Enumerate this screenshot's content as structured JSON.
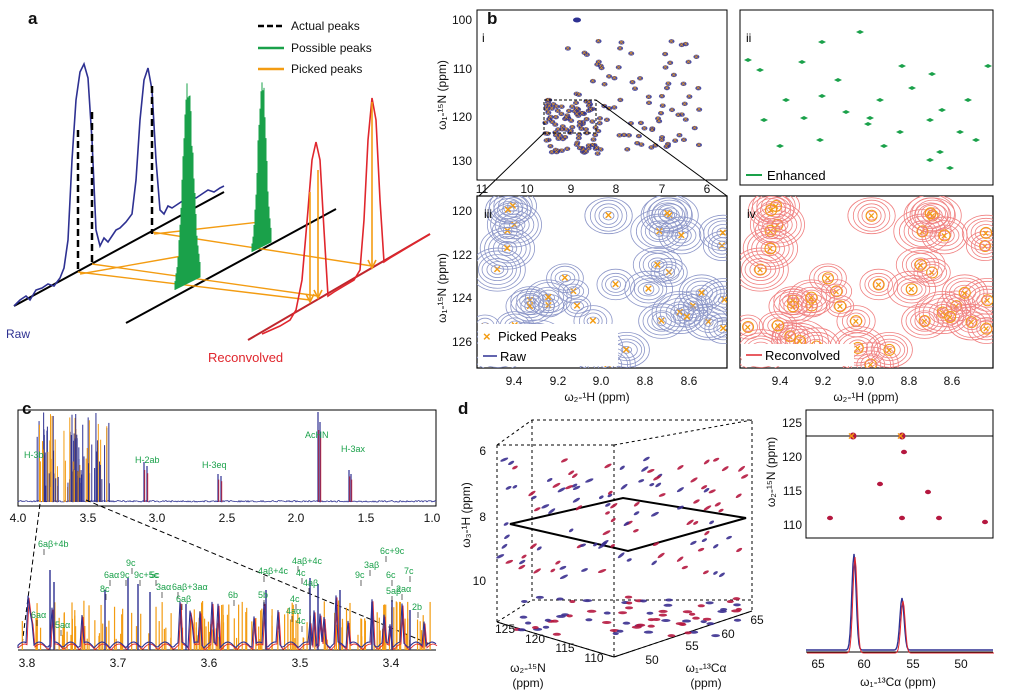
{
  "panel_labels": {
    "a": "a",
    "b": "b",
    "c": "c",
    "d": "d"
  },
  "panel_a": {
    "legend": [
      {
        "label": "Actual peaks",
        "color": "#000000",
        "style": "dashed"
      },
      {
        "label": "Possible peaks",
        "color": "#1aa14a",
        "style": "solid"
      },
      {
        "label": "Picked peaks",
        "color": "#f39c12",
        "style": "solid"
      }
    ],
    "raw_label": "Raw",
    "reconvolved_label": "Reconvolved"
  },
  "panel_b": {
    "sub_i": "i",
    "sub_ii": "ii",
    "sub_iii": "iii",
    "sub_iv": "iv",
    "i_yticks": [
      "100",
      "110",
      "120",
      "130"
    ],
    "i_xticks": [
      "11",
      "10",
      "9",
      "8",
      "7",
      "6"
    ],
    "i_ylabel": "ω₁-¹⁵N (ppm)",
    "ii_legend": "Enhanced",
    "iii_yticks": [
      "120",
      "122",
      "124",
      "126"
    ],
    "iii_xticks": [
      "9.4",
      "9.2",
      "9.0",
      "8.8",
      "8.6"
    ],
    "iii_ylabel": "ω₁-¹⁵N (ppm)",
    "iii_xlabel": "ω₂-¹H (ppm)",
    "iii_legend_picked": "Picked Peaks",
    "iii_legend_raw": "Raw",
    "iv_xticks": [
      "9.4",
      "9.2",
      "9.0",
      "8.8",
      "8.6"
    ],
    "iv_xlabel": "ω₂-¹H (ppm)",
    "iv_legend": "Reconvolved"
  },
  "panel_c": {
    "top_labels": [
      "H-3b",
      "H-2ab",
      "H-3eq",
      "AcHN",
      "H-3ax"
    ],
    "top_xticks": [
      "4.0",
      "3.5",
      "3.0",
      "2.5",
      "2.0",
      "1.5",
      "1.0"
    ],
    "bottom_xticks": [
      "3.8",
      "3.7",
      "3.6",
      "3.5",
      "3.4"
    ],
    "bottom_labels": [
      "6aβ+4b",
      "6aα",
      "5aα",
      "8c",
      "6aα",
      "9c",
      "9c",
      "9c+5c",
      "5c",
      "3aα",
      "6aβ+3aα",
      "6aβ",
      "6b",
      "5b",
      "4aβ+4c",
      "4aβ+4c",
      "4c",
      "4aβ",
      "4c",
      "4aα",
      "4c",
      "9c",
      "3aβ",
      "6c+9c",
      "6c",
      "5aβ",
      "7c",
      "2aα",
      "2b"
    ]
  },
  "panel_d": {
    "z_ticks": [
      "6",
      "8",
      "10"
    ],
    "z_label": "ω₃-¹H (ppm)",
    "n_ticks": [
      "125",
      "120",
      "115",
      "110"
    ],
    "n_label": "ω₂-¹⁵N",
    "n_unit": "(ppm)",
    "ca_ticks": [
      "65",
      "60",
      "55",
      "50"
    ],
    "ca_label": "ω₁-¹³Cα",
    "ca_unit": "(ppm)",
    "right_yticks": [
      "125",
      "120",
      "115",
      "110"
    ],
    "right_ylabel": "ω₂-¹⁵N (ppm)",
    "right_xticks": [
      "65",
      "60",
      "55",
      "50"
    ],
    "right_xlabel": "ω₁-¹³Cα (ppm)"
  },
  "colors": {
    "raw": "#2e3192",
    "picked": "#f39c12",
    "possible": "#1aa14a",
    "reconvolved": "#e0262d",
    "contour_blue": "#8c96c8",
    "contour_red": "#f08080"
  }
}
